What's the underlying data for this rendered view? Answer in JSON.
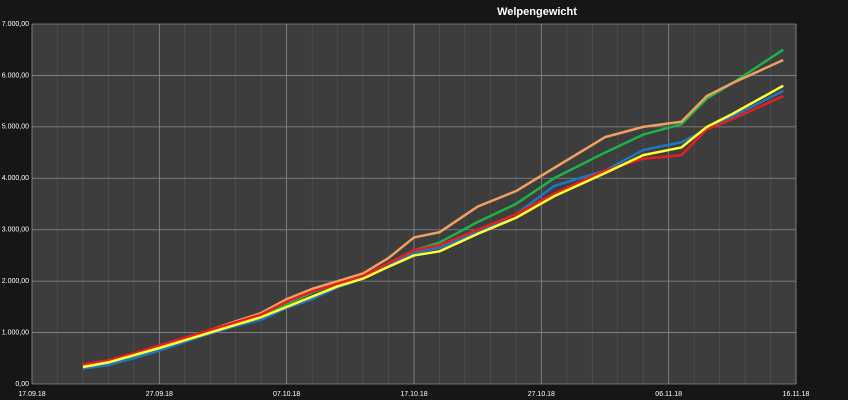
{
  "chart_data": {
    "type": "line",
    "title": "Welpengewicht",
    "x": [
      "2018-09-21",
      "2018-09-23",
      "2018-09-25",
      "2018-09-27",
      "2018-09-29",
      "2018-10-01",
      "2018-10-03",
      "2018-10-05",
      "2018-10-07",
      "2018-10-09",
      "2018-10-11",
      "2018-10-13",
      "2018-10-15",
      "2018-10-17",
      "2018-10-19",
      "2018-10-22",
      "2018-10-25",
      "2018-10-28",
      "2018-11-01",
      "2018-11-04",
      "2018-11-07",
      "2018-11-09",
      "2018-11-11",
      "2018-11-15"
    ],
    "series": [
      {
        "color": "#1db34a",
        "values": [
          320,
          400,
          540,
          690,
          860,
          1020,
          1200,
          1350,
          1550,
          1780,
          1950,
          2100,
          2350,
          2600,
          2750,
          3150,
          3500,
          4000,
          4500,
          4850,
          5050,
          5550,
          5850,
          6500
        ]
      },
      {
        "color": "#f0a060",
        "values": [
          350,
          440,
          580,
          720,
          880,
          1050,
          1220,
          1380,
          1650,
          1850,
          2000,
          2150,
          2450,
          2850,
          2950,
          3450,
          3750,
          4200,
          4800,
          5000,
          5100,
          5600,
          5850,
          6300
        ]
      },
      {
        "color": "#1f77c4",
        "values": [
          300,
          370,
          500,
          650,
          820,
          980,
          1130,
          1250,
          1480,
          1650,
          1880,
          2050,
          2300,
          2550,
          2650,
          2950,
          3300,
          3850,
          4150,
          4550,
          4700,
          4950,
          5200,
          5700
        ]
      },
      {
        "color": "#e81e1e",
        "values": [
          380,
          460,
          600,
          750,
          900,
          1050,
          1200,
          1350,
          1600,
          1800,
          1950,
          2100,
          2350,
          2600,
          2700,
          3000,
          3300,
          3700,
          4150,
          4380,
          4450,
          4950,
          5150,
          5600
        ]
      },
      {
        "color": "#ffff33",
        "values": [
          330,
          420,
          560,
          700,
          850,
          1000,
          1150,
          1300,
          1500,
          1700,
          1900,
          2050,
          2280,
          2500,
          2580,
          2920,
          3230,
          3650,
          4100,
          4450,
          4600,
          5000,
          5250,
          5800
        ]
      }
    ],
    "xlim": [
      "2018-09-17",
      "2018-11-16"
    ],
    "xticks": [
      {
        "value": "2018-09-17",
        "label": "17.09.18"
      },
      {
        "value": "2018-09-27",
        "label": "27.09.18"
      },
      {
        "value": "2018-10-07",
        "label": "07.10.18"
      },
      {
        "value": "2018-10-17",
        "label": "17.10.18"
      },
      {
        "value": "2018-10-27",
        "label": "27.10.18"
      },
      {
        "value": "2018-11-06",
        "label": "06.11.18"
      },
      {
        "value": "2018-11-16",
        "label": "16.11.18"
      }
    ],
    "ylim": [
      0,
      7000
    ],
    "yticks": [
      {
        "value": 0,
        "label": "0,00"
      },
      {
        "value": 1000,
        "label": "1.000,00"
      },
      {
        "value": 2000,
        "label": "2.000,00"
      },
      {
        "value": 3000,
        "label": "3.000,00"
      },
      {
        "value": 4000,
        "label": "4.000,00"
      },
      {
        "value": 5000,
        "label": "5.000,00"
      },
      {
        "value": 6000,
        "label": "6.000,00"
      },
      {
        "value": 7000,
        "label": "7.000,00"
      }
    ],
    "grid": true
  }
}
